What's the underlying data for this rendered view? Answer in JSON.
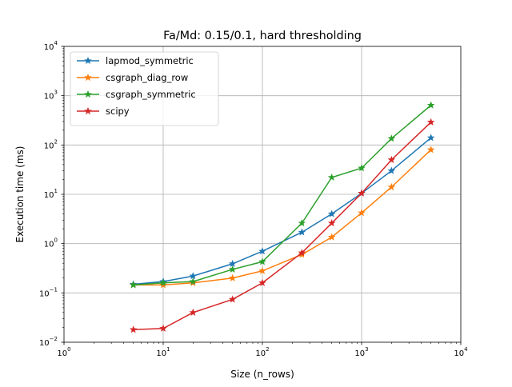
{
  "chart_data": {
    "type": "line",
    "title": "Fa/Md: 0.15/0.1, hard thresholding",
    "xlabel": "Size (n_rows)",
    "ylabel": "Execution time (ms)",
    "x_scale": "log",
    "y_scale": "log",
    "xlim": [
      1,
      10000
    ],
    "ylim": [
      0.01,
      10000
    ],
    "x_ticks": [
      {
        "value": 1,
        "base": "10",
        "exp": "0"
      },
      {
        "value": 10,
        "base": "10",
        "exp": "1"
      },
      {
        "value": 100,
        "base": "10",
        "exp": "2"
      },
      {
        "value": 1000,
        "base": "10",
        "exp": "3"
      },
      {
        "value": 10000,
        "base": "10",
        "exp": "4"
      }
    ],
    "y_ticks": [
      {
        "value": 0.01,
        "base": "10",
        "exp": "−2"
      },
      {
        "value": 0.1,
        "base": "10",
        "exp": "−1"
      },
      {
        "value": 1,
        "base": "10",
        "exp": "0"
      },
      {
        "value": 10,
        "base": "10",
        "exp": "1"
      },
      {
        "value": 100,
        "base": "10",
        "exp": "2"
      },
      {
        "value": 1000,
        "base": "10",
        "exp": "3"
      },
      {
        "value": 10000,
        "base": "10",
        "exp": "4"
      }
    ],
    "grid": true,
    "legend_position": "top-left",
    "x": [
      5,
      10,
      20,
      50,
      100,
      250,
      500,
      1000,
      2000,
      5000
    ],
    "series": [
      {
        "name": "lapmod_symmetric",
        "color": "#1f77b4",
        "marker": "star",
        "values": [
          0.15,
          0.17,
          0.22,
          0.39,
          0.7,
          1.7,
          4.0,
          10.5,
          30,
          140
        ]
      },
      {
        "name": "csgraph_diag_row",
        "color": "#ff7f0e",
        "marker": "star",
        "values": [
          0.145,
          0.145,
          0.16,
          0.2,
          0.28,
          0.6,
          1.35,
          4.2,
          14,
          80
        ]
      },
      {
        "name": "csgraph_symmetric",
        "color": "#2ca02c",
        "marker": "star",
        "values": [
          0.145,
          0.16,
          0.17,
          0.3,
          0.43,
          2.6,
          22,
          34,
          135,
          640
        ]
      },
      {
        "name": "scipy",
        "color": "#d62728",
        "marker": "star",
        "values": [
          0.018,
          0.019,
          0.04,
          0.074,
          0.16,
          0.65,
          2.6,
          10.5,
          50,
          290
        ]
      }
    ]
  }
}
